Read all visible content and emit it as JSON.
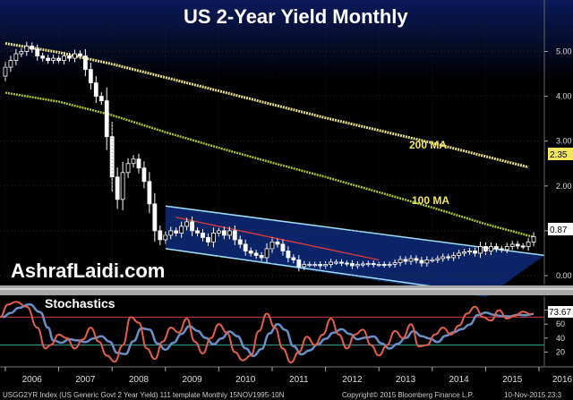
{
  "chart_data": {
    "type": "candlestick",
    "title": "US 2-Year Yield Monthly",
    "watermark": "AshrafLaidi.com",
    "footer": "USGG2YR Index (US Generic Govt 2 Year Yield) 111 template  Monthly 15NOV1995-10N",
    "copyright": "Copyright© 2015 Bloomberg Finance L.P.",
    "timestamp": "10-Nov-2015 23:3",
    "x_ticks": [
      "2006",
      "2007",
      "2008",
      "2009",
      "2010",
      "2011",
      "2012",
      "2013",
      "2014",
      "2015",
      "2016"
    ],
    "xlim": [
      2005.9,
      2016.1
    ],
    "price_panel": {
      "ylim": [
        -0.2,
        5.55
      ],
      "y_ticks": [
        "5.00",
        "4.00",
        "3.00",
        "2.00",
        "1.00",
        "0.00"
      ],
      "last_value_label": "0.87",
      "ma_labels": [
        {
          "text": "200 MA",
          "color": "#f2e65e"
        },
        {
          "text": "100 MA",
          "color": "#f2e65e"
        }
      ],
      "ma200": [
        [
          2006.0,
          5.18
        ],
        [
          2007.0,
          4.98
        ],
        [
          2008.0,
          4.72
        ],
        [
          2009.0,
          4.42
        ],
        [
          2010.0,
          4.12
        ],
        [
          2011.0,
          3.82
        ],
        [
          2012.0,
          3.52
        ],
        [
          2013.0,
          3.24
        ],
        [
          2014.0,
          2.96
        ],
        [
          2015.0,
          2.66
        ],
        [
          2015.8,
          2.42
        ]
      ],
      "ma100": [
        [
          2006.0,
          4.08
        ],
        [
          2007.0,
          3.88
        ],
        [
          2008.0,
          3.58
        ],
        [
          2009.0,
          3.2
        ],
        [
          2010.0,
          2.85
        ],
        [
          2011.0,
          2.52
        ],
        [
          2012.0,
          2.2
        ],
        [
          2013.0,
          1.86
        ],
        [
          2014.0,
          1.52
        ],
        [
          2015.0,
          1.15
        ],
        [
          2015.9,
          0.86
        ]
      ],
      "channel_upper": [
        [
          2009.0,
          1.55
        ],
        [
          2016.1,
          0.45
        ]
      ],
      "channel_lower": [
        [
          2009.0,
          0.6
        ],
        [
          2014.0,
          -0.24
        ]
      ],
      "trend_line": [
        [
          2009.2,
          1.3
        ],
        [
          2013.0,
          0.35
        ]
      ],
      "close_points": [
        [
          2005.9,
          4.45
        ],
        [
          2006.0,
          4.65
        ],
        [
          2006.1,
          4.8
        ],
        [
          2006.2,
          4.95
        ],
        [
          2006.3,
          5.0
        ],
        [
          2006.4,
          5.12
        ],
        [
          2006.5,
          5.05
        ],
        [
          2006.6,
          4.9
        ],
        [
          2006.7,
          4.85
        ],
        [
          2006.8,
          4.8
        ],
        [
          2006.9,
          4.85
        ],
        [
          2007.0,
          4.8
        ],
        [
          2007.1,
          4.9
        ],
        [
          2007.2,
          4.85
        ],
        [
          2007.3,
          4.95
        ],
        [
          2007.4,
          4.9
        ],
        [
          2007.5,
          4.6
        ],
        [
          2007.6,
          4.3
        ],
        [
          2007.7,
          4.0
        ],
        [
          2007.8,
          3.9
        ],
        [
          2007.9,
          3.1
        ],
        [
          2008.0,
          2.2
        ],
        [
          2008.1,
          1.7
        ],
        [
          2008.2,
          2.3
        ],
        [
          2008.3,
          2.5
        ],
        [
          2008.4,
          2.6
        ],
        [
          2008.5,
          2.4
        ],
        [
          2008.6,
          2.1
        ],
        [
          2008.7,
          1.6
        ],
        [
          2008.8,
          1.0
        ],
        [
          2008.9,
          0.8
        ],
        [
          2009.0,
          0.9
        ],
        [
          2009.1,
          1.0
        ],
        [
          2009.2,
          0.95
        ],
        [
          2009.3,
          1.1
        ],
        [
          2009.4,
          1.2
        ],
        [
          2009.5,
          1.0
        ],
        [
          2009.6,
          0.95
        ],
        [
          2009.7,
          0.85
        ],
        [
          2009.8,
          0.75
        ],
        [
          2009.9,
          0.95
        ],
        [
          2010.0,
          1.0
        ],
        [
          2010.1,
          0.9
        ],
        [
          2010.2,
          1.0
        ],
        [
          2010.3,
          0.8
        ],
        [
          2010.4,
          0.7
        ],
        [
          2010.5,
          0.55
        ],
        [
          2010.6,
          0.5
        ],
        [
          2010.7,
          0.45
        ],
        [
          2010.8,
          0.4
        ],
        [
          2010.9,
          0.6
        ],
        [
          2011.0,
          0.75
        ],
        [
          2011.1,
          0.7
        ],
        [
          2011.2,
          0.55
        ],
        [
          2011.3,
          0.4
        ],
        [
          2011.4,
          0.35
        ],
        [
          2011.5,
          0.2
        ],
        [
          2011.6,
          0.25
        ],
        [
          2011.7,
          0.25
        ],
        [
          2011.8,
          0.25
        ],
        [
          2011.9,
          0.22
        ],
        [
          2012.0,
          0.25
        ],
        [
          2012.1,
          0.3
        ],
        [
          2012.2,
          0.3
        ],
        [
          2012.3,
          0.28
        ],
        [
          2012.4,
          0.27
        ],
        [
          2012.5,
          0.22
        ],
        [
          2012.6,
          0.25
        ],
        [
          2012.7,
          0.26
        ],
        [
          2012.8,
          0.27
        ],
        [
          2012.9,
          0.25
        ],
        [
          2013.0,
          0.25
        ],
        [
          2013.1,
          0.24
        ],
        [
          2013.2,
          0.25
        ],
        [
          2013.3,
          0.29
        ],
        [
          2013.4,
          0.36
        ],
        [
          2013.5,
          0.32
        ],
        [
          2013.6,
          0.38
        ],
        [
          2013.7,
          0.34
        ],
        [
          2013.8,
          0.28
        ],
        [
          2013.9,
          0.35
        ],
        [
          2014.0,
          0.35
        ],
        [
          2014.1,
          0.38
        ],
        [
          2014.2,
          0.42
        ],
        [
          2014.3,
          0.4
        ],
        [
          2014.4,
          0.45
        ],
        [
          2014.5,
          0.5
        ],
        [
          2014.6,
          0.53
        ],
        [
          2014.7,
          0.55
        ],
        [
          2014.8,
          0.5
        ],
        [
          2014.9,
          0.65
        ],
        [
          2015.0,
          0.55
        ],
        [
          2015.1,
          0.65
        ],
        [
          2015.2,
          0.6
        ],
        [
          2015.3,
          0.58
        ],
        [
          2015.4,
          0.65
        ],
        [
          2015.5,
          0.7
        ],
        [
          2015.6,
          0.66
        ],
        [
          2015.7,
          0.65
        ],
        [
          2015.8,
          0.75
        ],
        [
          2015.9,
          0.87
        ]
      ]
    },
    "stochastics_panel": {
      "label": "Stochastics",
      "ylim": [
        0,
        100
      ],
      "y_ticks": [
        "80",
        "60",
        "40",
        "20"
      ],
      "last_value_label": "73.67",
      "overbought": 70,
      "oversold": 30,
      "k_line": [
        [
          2005.9,
          70
        ],
        [
          2006.05,
          88
        ],
        [
          2006.2,
          92
        ],
        [
          2006.4,
          85
        ],
        [
          2006.6,
          55
        ],
        [
          2006.75,
          25
        ],
        [
          2006.85,
          30
        ],
        [
          2007.0,
          45
        ],
        [
          2007.15,
          40
        ],
        [
          2007.3,
          25
        ],
        [
          2007.45,
          38
        ],
        [
          2007.6,
          55
        ],
        [
          2007.75,
          35
        ],
        [
          2007.9,
          15
        ],
        [
          2008.05,
          6
        ],
        [
          2008.2,
          30
        ],
        [
          2008.35,
          70
        ],
        [
          2008.5,
          62
        ],
        [
          2008.65,
          25
        ],
        [
          2008.8,
          10
        ],
        [
          2008.95,
          35
        ],
        [
          2009.1,
          55
        ],
        [
          2009.25,
          48
        ],
        [
          2009.4,
          68
        ],
        [
          2009.55,
          35
        ],
        [
          2009.7,
          18
        ],
        [
          2009.85,
          40
        ],
        [
          2010.0,
          60
        ],
        [
          2010.15,
          48
        ],
        [
          2010.3,
          20
        ],
        [
          2010.45,
          8
        ],
        [
          2010.6,
          15
        ],
        [
          2010.75,
          50
        ],
        [
          2010.9,
          75
        ],
        [
          2011.05,
          55
        ],
        [
          2011.2,
          25
        ],
        [
          2011.35,
          5
        ],
        [
          2011.5,
          20
        ],
        [
          2011.65,
          42
        ],
        [
          2011.8,
          30
        ],
        [
          2011.95,
          45
        ],
        [
          2012.1,
          68
        ],
        [
          2012.25,
          45
        ],
        [
          2012.4,
          25
        ],
        [
          2012.55,
          45
        ],
        [
          2012.7,
          52
        ],
        [
          2012.85,
          30
        ],
        [
          2013.0,
          15
        ],
        [
          2013.15,
          30
        ],
        [
          2013.3,
          50
        ],
        [
          2013.45,
          40
        ],
        [
          2013.6,
          60
        ],
        [
          2013.75,
          28
        ],
        [
          2013.9,
          30
        ],
        [
          2014.05,
          45
        ],
        [
          2014.2,
          55
        ],
        [
          2014.35,
          45
        ],
        [
          2014.5,
          58
        ],
        [
          2014.65,
          75
        ],
        [
          2014.8,
          85
        ],
        [
          2014.95,
          70
        ],
        [
          2015.1,
          65
        ],
        [
          2015.25,
          80
        ],
        [
          2015.4,
          68
        ],
        [
          2015.55,
          72
        ],
        [
          2015.7,
          78
        ],
        [
          2015.85,
          74
        ]
      ]
    }
  }
}
